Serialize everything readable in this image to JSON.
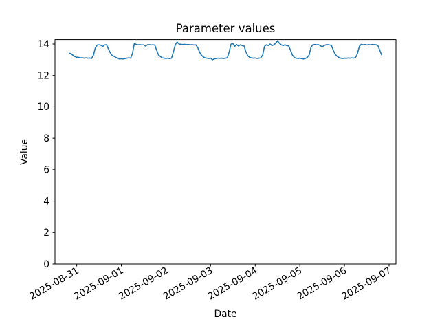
{
  "chart_data": {
    "type": "line",
    "title": "Parameter values",
    "xlabel": "Date",
    "ylabel": "Value",
    "grid": false,
    "legend": "none",
    "line_color": "#1f77b4",
    "background_color": "#ffffff",
    "axis_color": "#000000",
    "x_tick_labels": [
      "2025-08-31",
      "2025-09-01",
      "2025-09-02",
      "2025-09-03",
      "2025-09-04",
      "2025-09-05",
      "2025-09-06",
      "2025-09-07"
    ],
    "x_tick_hours": [
      0,
      24,
      48,
      72,
      96,
      120,
      144,
      168
    ],
    "x_tick_rotation_deg": 30,
    "y_ticks": [
      0,
      2,
      4,
      6,
      8,
      10,
      12,
      14
    ],
    "ylim": [
      0,
      14.28
    ],
    "xlim_hours": [
      -11.7,
      171.7
    ],
    "x_unit": "hours since 2025-08-31 00:00",
    "x_start_hour": -4,
    "x_step_hours": 1,
    "values": [
      13.42,
      13.38,
      13.28,
      13.2,
      13.16,
      13.15,
      13.12,
      13.13,
      13.1,
      13.12,
      13.1,
      13.11,
      13.08,
      13.3,
      13.75,
      13.93,
      13.95,
      13.92,
      13.85,
      13.94,
      13.96,
      13.7,
      13.45,
      13.28,
      13.22,
      13.15,
      13.08,
      13.05,
      13.06,
      13.05,
      13.07,
      13.1,
      13.12,
      13.1,
      13.4,
      14.05,
      13.97,
      13.95,
      13.96,
      13.94,
      13.95,
      13.87,
      13.95,
      13.96,
      13.94,
      13.95,
      13.93,
      13.6,
      13.3,
      13.2,
      13.12,
      13.1,
      13.08,
      13.1,
      13.07,
      13.1,
      13.5,
      13.95,
      14.13,
      14.0,
      13.98,
      13.97,
      13.98,
      13.96,
      13.97,
      13.95,
      13.96,
      13.94,
      13.95,
      13.8,
      13.5,
      13.3,
      13.18,
      13.12,
      13.1,
      13.08,
      13.1,
      13.0,
      13.05,
      13.08,
      13.1,
      13.09,
      13.1,
      13.08,
      13.1,
      13.12,
      13.5,
      14.0,
      14.03,
      13.85,
      13.97,
      13.87,
      13.95,
      13.9,
      13.88,
      13.5,
      13.25,
      13.15,
      13.12,
      13.1,
      13.11,
      13.08,
      13.1,
      13.12,
      13.3,
      13.85,
      13.95,
      13.9,
      14.0,
      13.9,
      13.95,
      14.05,
      14.2,
      14.05,
      13.95,
      13.9,
      13.95,
      13.9,
      13.88,
      13.6,
      13.3,
      13.15,
      13.1,
      13.08,
      13.1,
      13.07,
      13.05,
      13.08,
      13.15,
      13.3,
      13.8,
      13.95,
      13.97,
      13.95,
      13.96,
      13.9,
      13.82,
      13.9,
      13.95,
      13.96,
      13.94,
      13.9,
      13.6,
      13.35,
      13.22,
      13.15,
      13.1,
      13.08,
      13.1,
      13.09,
      13.11,
      13.1,
      13.12,
      13.1,
      13.15,
      13.4,
      13.85,
      13.98,
      13.95,
      13.97,
      13.94,
      13.96,
      13.95,
      13.97,
      13.96,
      13.95,
      13.9,
      13.6,
      13.3
    ]
  }
}
